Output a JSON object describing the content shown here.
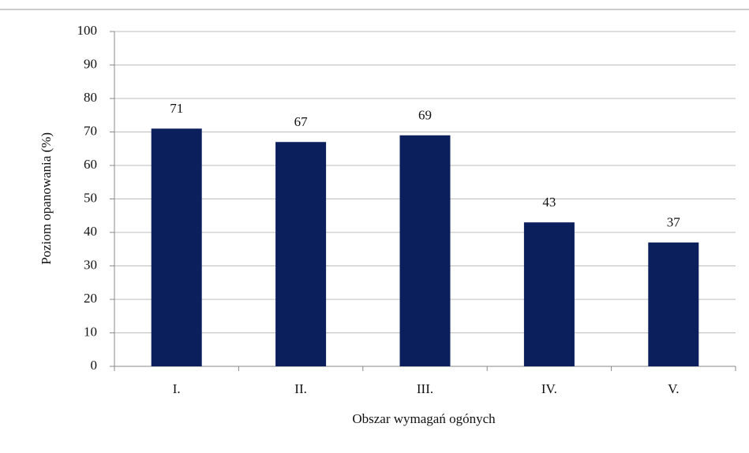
{
  "chart_data": {
    "type": "bar",
    "x_label": "Obszar wymagań ogónych",
    "y_label": "Poziom  opanowania (%)",
    "categories": [
      "I.",
      "II.",
      "III.",
      "IV.",
      "V."
    ],
    "values": [
      71,
      67,
      69,
      43,
      37
    ],
    "color": "#0a1f5c",
    "ylim": [
      0,
      100
    ],
    "yticks": [
      0,
      10,
      20,
      30,
      40,
      50,
      60,
      70,
      80,
      90,
      100
    ],
    "grid": true
  }
}
